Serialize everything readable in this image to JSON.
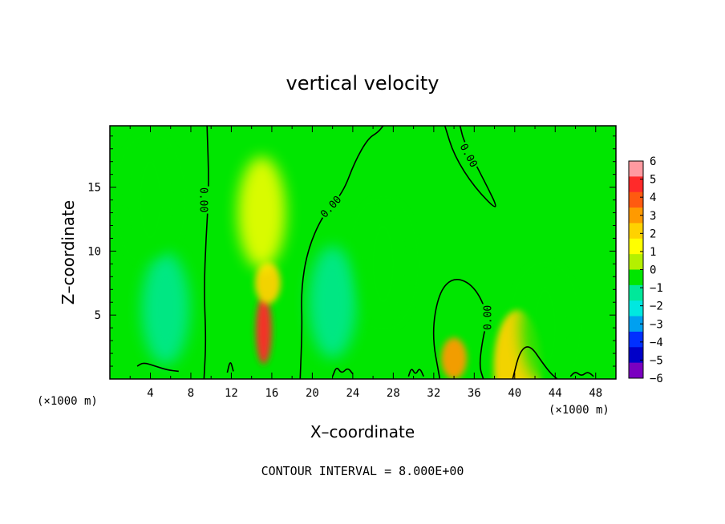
{
  "chart_data": {
    "type": "heatmap",
    "title": "vertical velocity",
    "xlabel": "X–coordinate",
    "ylabel": "Z–coordinate",
    "x_unit_left": "(×1000 m)",
    "x_unit_right": "(×1000 m)",
    "xlim": [
      0,
      50
    ],
    "ylim": [
      0,
      19.8
    ],
    "x_ticks": [
      4,
      8,
      12,
      16,
      20,
      24,
      28,
      32,
      36,
      40,
      44,
      48
    ],
    "x_tick_labels": [
      "4",
      "8",
      "12",
      "16",
      "20",
      "24",
      "28",
      "32",
      "36",
      "40",
      "44",
      "48"
    ],
    "y_ticks": [
      5,
      10,
      15
    ],
    "y_tick_labels": [
      "5",
      "10",
      "15"
    ],
    "contour_label": "0.00",
    "contour_interval_text": "CONTOUR INTERVAL = 8.000E+00",
    "colorbar": {
      "levels": [
        6,
        5,
        4,
        3,
        2,
        1,
        0,
        -1,
        -2,
        -3,
        -4,
        -5,
        -6
      ],
      "labels": [
        "6",
        "5",
        "4",
        "3",
        "2",
        "1",
        "0",
        "−1",
        "−2",
        "−3",
        "−4",
        "−5",
        "−6"
      ],
      "colors": [
        "#ff9aa0",
        "#ff2a2a",
        "#ff5a10",
        "#ff9a00",
        "#ffd200",
        "#ffff00",
        "#b4f000",
        "#00e600",
        "#00e89a",
        "#00e8e0",
        "#00a0f0",
        "#0030ff",
        "#0000c8",
        "#7a00c0"
      ]
    },
    "features": [
      {
        "x": 15.2,
        "z": 3.8,
        "value": 5.6
      },
      {
        "x": 15.6,
        "z": 7.5,
        "value": 3.0
      },
      {
        "x": 15.0,
        "z": 13.0,
        "value": 1.4
      },
      {
        "x": 34.0,
        "z": 1.6,
        "value": 3.2
      },
      {
        "x": 40.3,
        "z": 1.0,
        "value": 2.5
      },
      {
        "x": 5.5,
        "z": 5.5,
        "value": -1.6
      },
      {
        "x": 22.0,
        "z": 6.0,
        "value": -1.3
      },
      {
        "x": 27.0,
        "z": 9.0,
        "value": -0.4
      },
      {
        "x": 4.0,
        "z": 14.0,
        "value": -0.3
      },
      {
        "x": 43.0,
        "z": 4.0,
        "value": -0.5
      }
    ],
    "zero_contours": [
      [
        [
          9.3,
          0.0
        ],
        [
          9.5,
          3.0
        ],
        [
          9.3,
          7.0
        ],
        [
          9.5,
          11.0
        ],
        [
          9.8,
          15.0
        ],
        [
          9.6,
          19.8
        ]
      ],
      [
        [
          18.8,
          0.0
        ],
        [
          19.0,
          4.0
        ],
        [
          18.9,
          7.0
        ],
        [
          19.5,
          10.0
        ],
        [
          21.0,
          12.8
        ],
        [
          23.0,
          14.5
        ],
        [
          24.2,
          17.0
        ],
        [
          25.5,
          18.8
        ],
        [
          26.5,
          19.3
        ],
        [
          27.0,
          19.8
        ]
      ],
      [
        [
          32.6,
          0.0
        ],
        [
          31.8,
          3.5
        ],
        [
          32.5,
          6.8
        ],
        [
          34.0,
          8.0
        ],
        [
          36.0,
          7.3
        ],
        [
          37.4,
          5.0
        ],
        [
          36.8,
          3.0
        ],
        [
          36.5,
          1.0
        ],
        [
          36.9,
          0.0
        ]
      ],
      [
        [
          33.1,
          19.8
        ],
        [
          34.0,
          17.5
        ],
        [
          36.0,
          15.0
        ],
        [
          38.6,
          12.9
        ],
        [
          37.0,
          15.5
        ],
        [
          35.0,
          18.5
        ],
        [
          34.6,
          19.8
        ]
      ],
      [
        [
          39.8,
          0.0
        ],
        [
          40.5,
          2.2
        ],
        [
          41.5,
          2.7
        ],
        [
          42.8,
          1.2
        ],
        [
          43.6,
          0.4
        ],
        [
          44.2,
          0.0
        ]
      ],
      [
        [
          2.7,
          1.0
        ],
        [
          3.3,
          1.3
        ],
        [
          4.5,
          1.0
        ],
        [
          5.7,
          0.7
        ],
        [
          6.8,
          0.6
        ]
      ],
      [
        [
          11.6,
          0.5
        ],
        [
          11.9,
          1.5
        ],
        [
          12.2,
          0.6
        ]
      ],
      [
        [
          22.0,
          0.2
        ],
        [
          22.4,
          1.0
        ],
        [
          22.9,
          0.4
        ],
        [
          23.5,
          0.9
        ],
        [
          24.0,
          0.4
        ]
      ],
      [
        [
          29.5,
          0.2
        ],
        [
          29.8,
          0.9
        ],
        [
          30.2,
          0.3
        ],
        [
          30.6,
          0.9
        ],
        [
          31.0,
          0.2
        ]
      ],
      [
        [
          45.5,
          0.2
        ],
        [
          46.0,
          0.6
        ],
        [
          46.6,
          0.2
        ],
        [
          47.2,
          0.6
        ],
        [
          47.8,
          0.2
        ]
      ]
    ],
    "contour_labels": [
      {
        "x": 9.3,
        "z": 14.0,
        "angle": 90
      },
      {
        "x": 21.8,
        "z": 13.5,
        "angle": -48
      },
      {
        "x": 35.5,
        "z": 17.5,
        "angle": 62
      },
      {
        "x": 37.3,
        "z": 4.8,
        "angle": -90
      }
    ]
  }
}
